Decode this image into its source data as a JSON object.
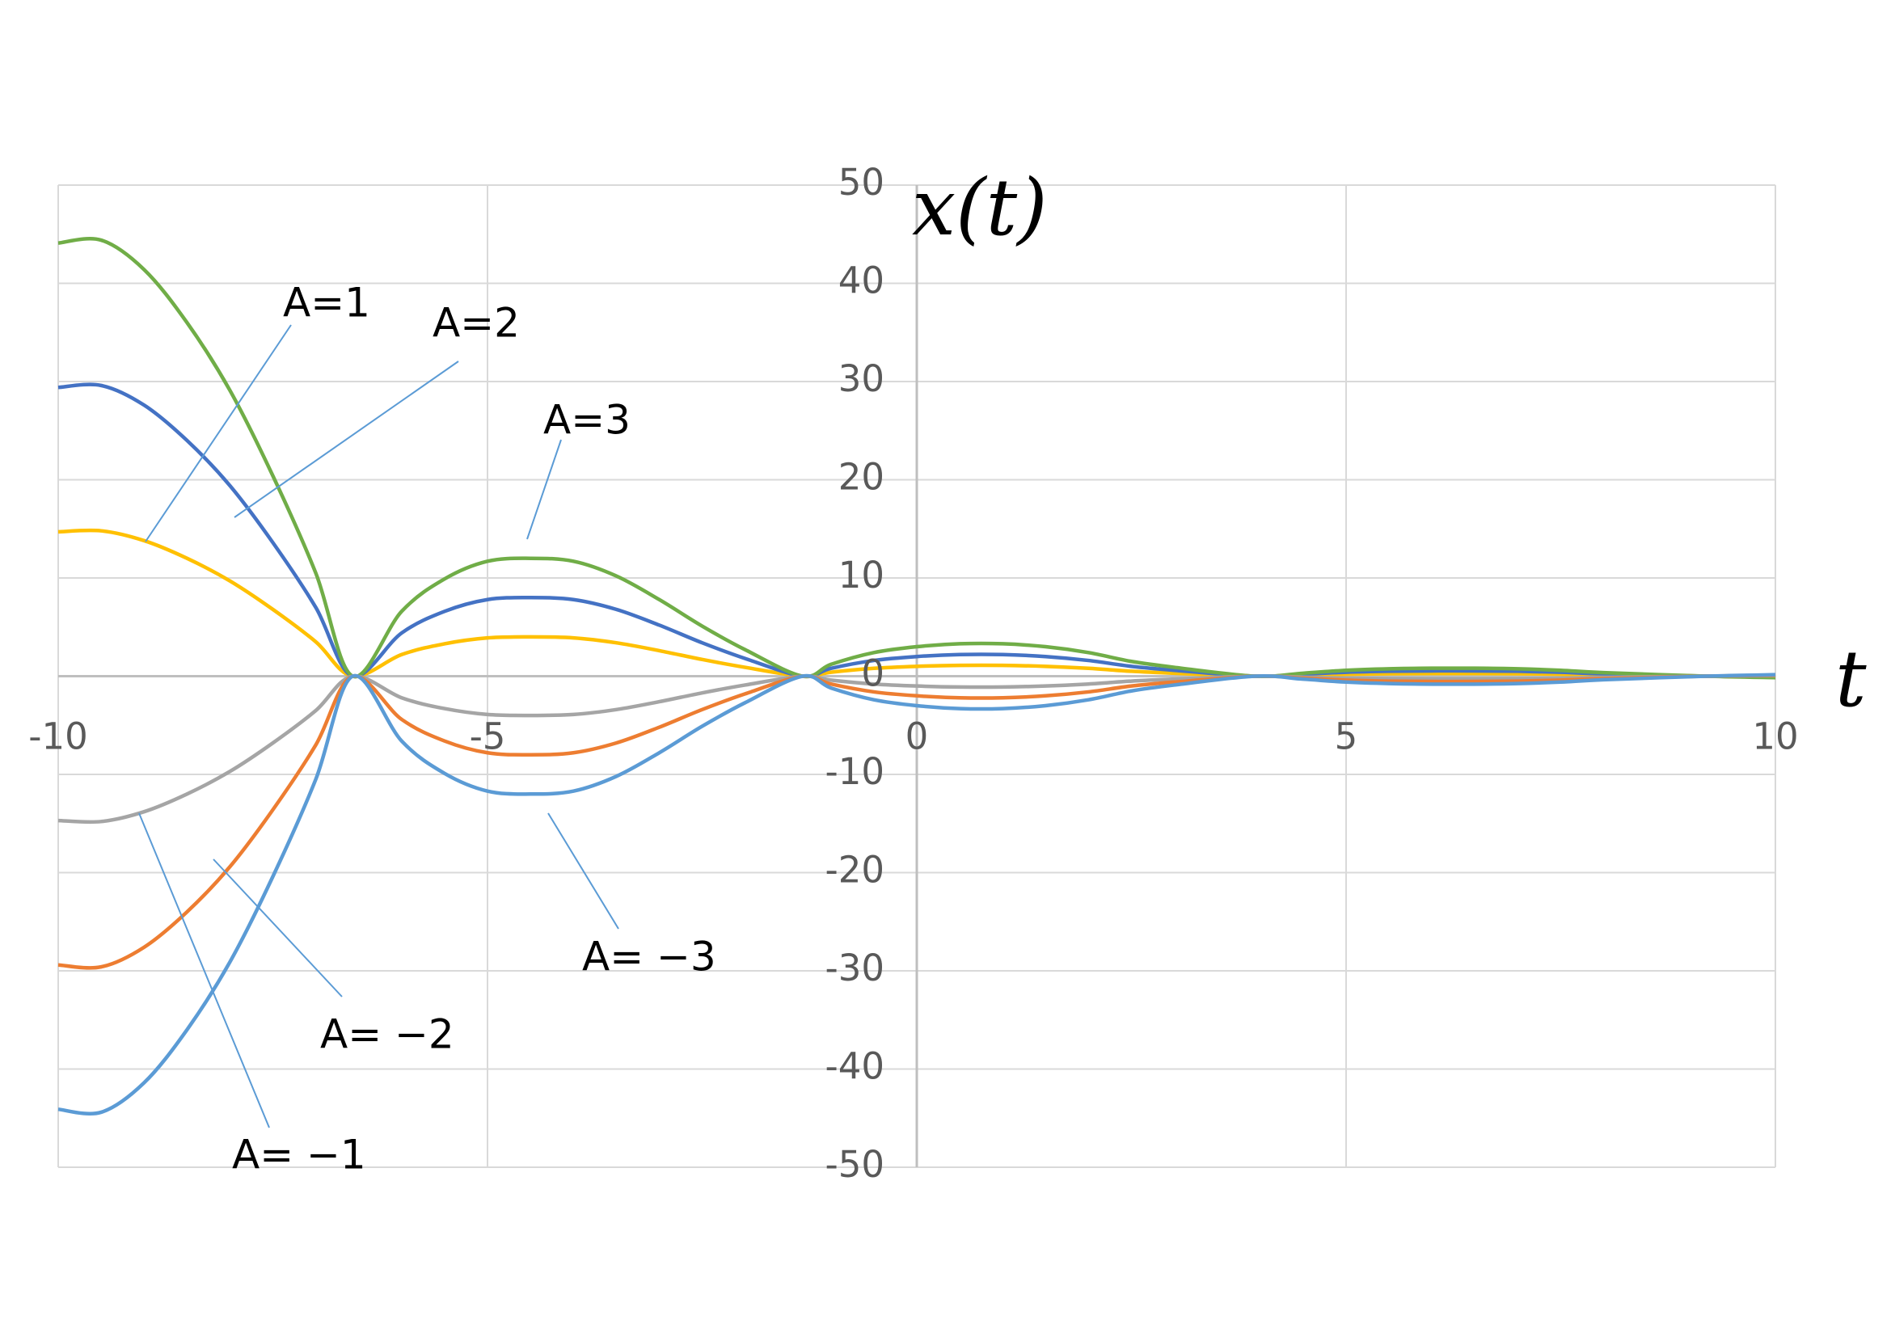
{
  "chart_data": {
    "type": "line",
    "x_label": "t",
    "y_label": "x(t)",
    "x": [
      -10,
      -9.5,
      -9,
      -8.5,
      -8,
      -7.5,
      -7,
      -6.57,
      -6,
      -5.5,
      -5,
      -4.5,
      -4,
      -3.5,
      -3,
      -2.5,
      -2,
      -1.33,
      -1,
      -0.5,
      0,
      0.5,
      1,
      1.5,
      2,
      2.5,
      3,
      3.94,
      4.5,
      5,
      5.5,
      6,
      6.5,
      7,
      7.5,
      8,
      9.2,
      10
    ],
    "series": [
      {
        "name": "A=1",
        "color": "#FFC000",
        "values": [
          14.7,
          14.8,
          13.8,
          12.0,
          9.7,
          6.8,
          3.5,
          0,
          2.2,
          3.3,
          3.9,
          4.0,
          3.9,
          3.4,
          2.6,
          1.7,
          0.9,
          0,
          0.4,
          0.8,
          1.0,
          1.1,
          1.1,
          1.0,
          0.8,
          0.5,
          0.3,
          0,
          0.1,
          0.2,
          0.25,
          0.27,
          0.27,
          0.25,
          0.2,
          0.12,
          0,
          -0.05
        ]
      },
      {
        "name": "A=2",
        "color": "#4472C4",
        "values": [
          29.4,
          29.6,
          27.6,
          24.0,
          19.4,
          13.6,
          7.0,
          0,
          4.4,
          6.6,
          7.8,
          8.0,
          7.8,
          6.8,
          5.2,
          3.4,
          1.8,
          0,
          0.8,
          1.6,
          2.0,
          2.2,
          2.2,
          2.0,
          1.6,
          1.0,
          0.6,
          0,
          0.2,
          0.4,
          0.5,
          0.54,
          0.54,
          0.5,
          0.4,
          0.24,
          0,
          -0.1
        ]
      },
      {
        "name": "A=3",
        "color": "#70AD47",
        "values": [
          44.1,
          44.4,
          41.4,
          36.0,
          29.1,
          20.4,
          10.5,
          0,
          6.6,
          9.9,
          11.7,
          12.0,
          11.7,
          10.2,
          7.8,
          5.1,
          2.7,
          0,
          1.2,
          2.4,
          3.0,
          3.3,
          3.3,
          3.0,
          2.4,
          1.5,
          0.9,
          0,
          0.3,
          0.6,
          0.75,
          0.81,
          0.81,
          0.75,
          0.6,
          0.36,
          0,
          -0.15
        ]
      },
      {
        "name": "A= −1",
        "color": "#A5A5A5",
        "values": [
          -14.7,
          -14.8,
          -13.8,
          -12.0,
          -9.7,
          -6.8,
          -3.5,
          0,
          -2.2,
          -3.3,
          -3.9,
          -4.0,
          -3.9,
          -3.4,
          -2.6,
          -1.7,
          -0.9,
          0,
          -0.4,
          -0.8,
          -1.0,
          -1.1,
          -1.1,
          -1.0,
          -0.8,
          -0.5,
          -0.3,
          0,
          -0.1,
          -0.2,
          -0.25,
          -0.27,
          -0.27,
          -0.25,
          -0.2,
          -0.12,
          0,
          0.05
        ]
      },
      {
        "name": "A= −2",
        "color": "#ED7D31",
        "values": [
          -29.4,
          -29.6,
          -27.6,
          -24.0,
          -19.4,
          -13.6,
          -7.0,
          0,
          -4.4,
          -6.6,
          -7.8,
          -8.0,
          -7.8,
          -6.8,
          -5.2,
          -3.4,
          -1.8,
          0,
          -0.8,
          -1.6,
          -2.0,
          -2.2,
          -2.2,
          -2.0,
          -1.6,
          -1.0,
          -0.6,
          0,
          -0.2,
          -0.4,
          -0.5,
          -0.54,
          -0.54,
          -0.5,
          -0.4,
          -0.24,
          0,
          0.1
        ]
      },
      {
        "name": "A= −3",
        "color": "#5B9BD5",
        "values": [
          -44.1,
          -44.4,
          -41.4,
          -36.0,
          -29.1,
          -20.4,
          -10.5,
          0,
          -6.6,
          -9.9,
          -11.7,
          -12.0,
          -11.7,
          -10.2,
          -7.8,
          -5.1,
          -2.7,
          0,
          -1.2,
          -2.4,
          -3.0,
          -3.3,
          -3.3,
          -3.0,
          -2.4,
          -1.5,
          -0.9,
          0,
          -0.3,
          -0.6,
          -0.75,
          -0.81,
          -0.81,
          -0.75,
          -0.6,
          -0.36,
          0,
          0.15
        ]
      }
    ],
    "xlim": [
      -10,
      10
    ],
    "xticks": [
      -10,
      -5,
      0,
      5,
      10
    ],
    "ylim": [
      -50,
      50
    ],
    "yticks": [
      -50,
      -40,
      -30,
      -20,
      -10,
      0,
      10,
      20,
      30,
      40,
      50
    ],
    "grid": true
  }
}
